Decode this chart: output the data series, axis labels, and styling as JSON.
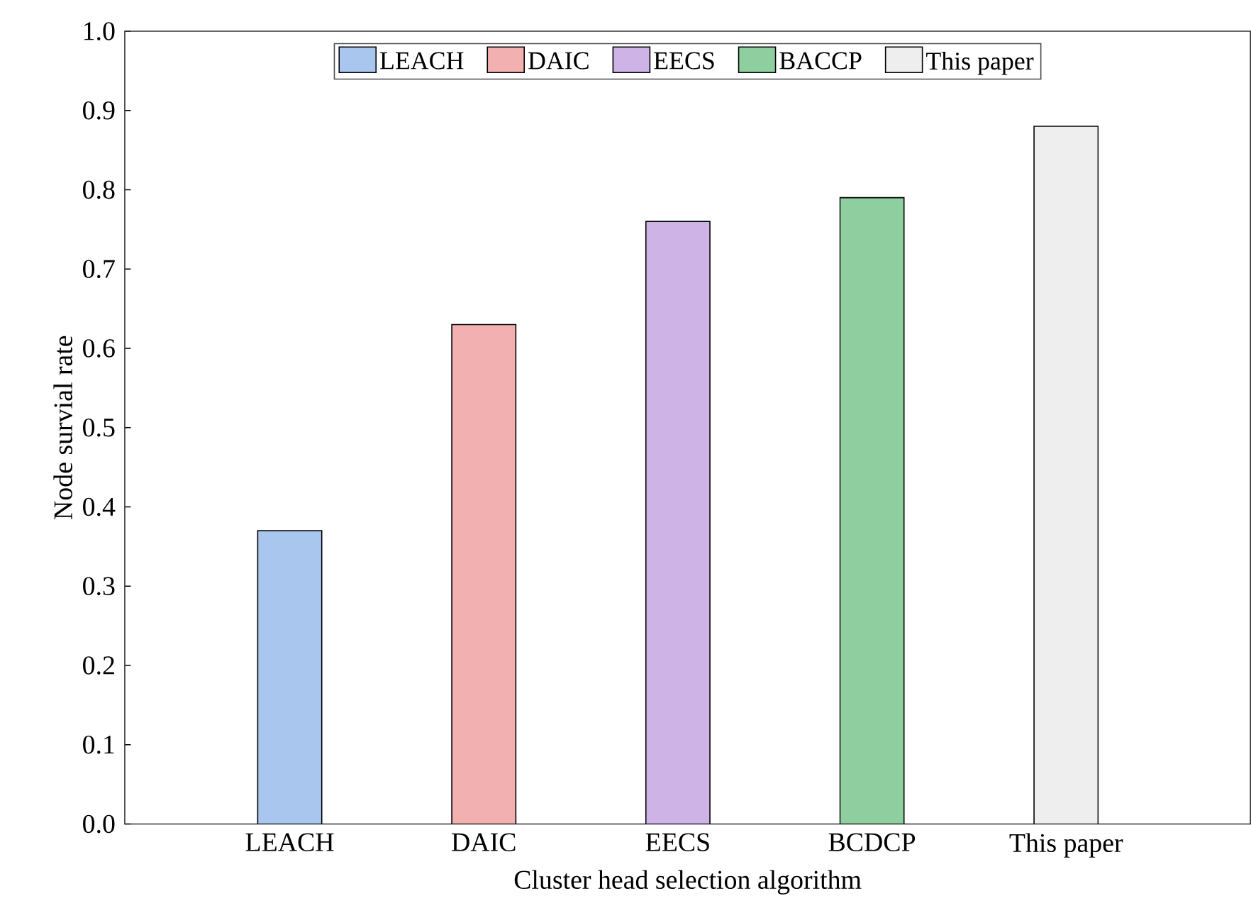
{
  "chart_data": {
    "type": "bar",
    "xlabel": "Cluster head selection algorithm",
    "ylabel": "Node survial rate",
    "categories": [
      "LEACH",
      "DAIC",
      "EECS",
      "BCDCP",
      "This paper"
    ],
    "series": [
      {
        "name": "LEACH",
        "color": "#a9c6ee",
        "values": [
          0.37,
          null,
          null,
          null,
          null
        ]
      },
      {
        "name": "DAIC",
        "color": "#f2b0b0",
        "values": [
          null,
          0.63,
          null,
          null,
          null
        ]
      },
      {
        "name": "EECS",
        "color": "#cdb3e6",
        "values": [
          null,
          null,
          0.76,
          null,
          null
        ]
      },
      {
        "name": "BACCP",
        "color": "#8fcf9f",
        "values": [
          null,
          null,
          null,
          0.79,
          null
        ]
      },
      {
        "name": "This paper",
        "color": "#eeeeee",
        "values": [
          null,
          null,
          null,
          null,
          0.88
        ]
      }
    ],
    "ylim": [
      0,
      1
    ],
    "yticks": [
      {
        "value": 0,
        "label": "0.0"
      },
      {
        "value": 0.1,
        "label": "0.1"
      },
      {
        "value": 0.2,
        "label": "0.2"
      },
      {
        "value": 0.3,
        "label": "0.3"
      },
      {
        "value": 0.4,
        "label": "0.4"
      },
      {
        "value": 0.5,
        "label": "0.5"
      },
      {
        "value": 0.6,
        "label": "0.6"
      },
      {
        "value": 0.7,
        "label": "0.7"
      },
      {
        "value": 0.8,
        "label": "0.8"
      },
      {
        "value": 0.9,
        "label": "0.9"
      },
      {
        "value": 1,
        "label": "1.0"
      }
    ],
    "grid": false,
    "legend": "top"
  }
}
